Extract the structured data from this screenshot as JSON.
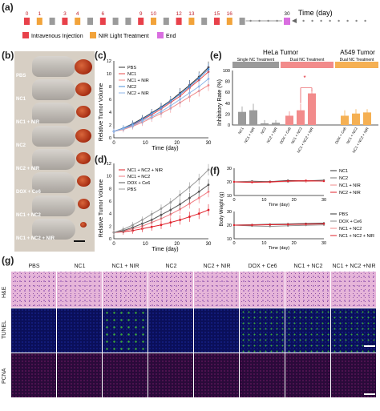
{
  "panel_labels": {
    "a": "(a)",
    "b": "(b)",
    "c": "(c)",
    "d": "(d)",
    "e": "(e)",
    "f": "(f)",
    "g": "(g)"
  },
  "timeline": {
    "axis_label": "Time (day)",
    "ticks": [
      "0",
      "1",
      "3",
      "4",
      "6",
      "9",
      "10",
      "12",
      "13",
      "15",
      "16",
      "30"
    ],
    "legend": {
      "injection": "Intravenous Injection",
      "nir": "NIR Light Treatment",
      "end": "End"
    },
    "colors": {
      "injection": "#e8414a",
      "nir": "#f2a33a",
      "end": "#d96ee0",
      "gray": "#9b9b9b"
    }
  },
  "mice_labels": [
    "PBS",
    "NC1",
    "NC1 + NIR",
    "NC2",
    "NC2 + NIR",
    "DOX + Ce6",
    "NC1 + NC2",
    "NC1 + NC2 + NIR"
  ],
  "panel_c": {
    "ylabel": "Relative Tumor Volume",
    "xlabel": "Time (day)",
    "legend": [
      "PBS",
      "NC1",
      "NC1 + NIR",
      "NC2",
      "NC2 + NIR"
    ]
  },
  "panel_d": {
    "ylabel": "Relative Tumor Volume",
    "xlabel": "Time (day)",
    "legend": [
      "NC1 + NC2 + NIR",
      "NC1 + NC2",
      "DOX + Ce6",
      "PBS"
    ]
  },
  "panel_e": {
    "ylabel": "Inhibitory Rate (%)",
    "group_hela": "HeLa Tumor",
    "group_a549": "A549 Tumor",
    "sub_single": "Single NC Treatment",
    "sub_dual": "Dual NC Treatment",
    "sub_dual2": "Dual NC Treatment",
    "xticks": [
      "NC1",
      "NC1 + NIR",
      "NC2",
      "NC2 + NIR",
      "DOX + Ce6",
      "NC1 + NC2",
      "NC1 + NC2 + NIR",
      "DOX + Ce6",
      "NC1 + NC2",
      "NC1 + NC2 + NIR"
    ],
    "sig": "*"
  },
  "panel_f": {
    "ylabel": "Body Weight (g)",
    "xlabel": "Time (day)",
    "legend_top": [
      "NC1",
      "NC2",
      "NC1 + NIR",
      "NC2 + NIR"
    ],
    "legend_bot": [
      "PBS",
      "DOX + Ce6",
      "NC1 + NC2",
      "NC1 + NC2 + NIR"
    ]
  },
  "panel_g": {
    "columns": [
      "PBS",
      "NC1",
      "NC1 + NIR",
      "NC2",
      "NC2 + NIR",
      "DOX + Ce6",
      "NC1 + NC2",
      "NC1 + NC2 +NIR"
    ],
    "rows": [
      "H&E",
      "TUNEL",
      "PCNA"
    ]
  },
  "chart_data": [
    {
      "type": "line",
      "title": "",
      "xlabel": "Time (day)",
      "ylabel": "Relative Tumor Volume",
      "x": [
        0,
        3,
        6,
        9,
        12,
        15,
        18,
        21,
        24,
        27,
        30
      ],
      "ylim": [
        0,
        12
      ],
      "xlim": [
        0,
        30
      ],
      "series": [
        {
          "name": "PBS",
          "color": "#333333",
          "values": [
            1,
            1.5,
            2.2,
            3.0,
            3.9,
            4.8,
            5.8,
            7.0,
            8.2,
            9.5,
            11.0
          ]
        },
        {
          "name": "NC1",
          "color": "#e84a4a",
          "values": [
            1,
            1.4,
            2.0,
            2.8,
            3.6,
            4.5,
            5.5,
            6.5,
            7.8,
            9.0,
            10.3
          ]
        },
        {
          "name": "NC1 + NIR",
          "color": "#f08a8a",
          "values": [
            1,
            1.3,
            1.8,
            2.4,
            3.1,
            3.8,
            4.6,
            5.5,
            6.4,
            7.3,
            8.2
          ]
        },
        {
          "name": "NC2",
          "color": "#4a8fd8",
          "values": [
            1,
            1.5,
            2.1,
            2.9,
            3.8,
            4.7,
            5.7,
            6.8,
            8.0,
            9.3,
            10.7
          ]
        },
        {
          "name": "NC2 + NIR",
          "color": "#8fb6e8",
          "values": [
            1,
            1.4,
            1.9,
            2.6,
            3.3,
            4.1,
            5.0,
            6.0,
            7.0,
            8.0,
            9.2
          ]
        }
      ]
    },
    {
      "type": "line",
      "title": "",
      "xlabel": "Time (day)",
      "ylabel": "Relative Tumor Volume",
      "x": [
        0,
        3,
        6,
        9,
        12,
        15,
        18,
        21,
        24,
        27,
        30
      ],
      "ylim": [
        0,
        12
      ],
      "xlim": [
        0,
        30
      ],
      "series": [
        {
          "name": "NC1 + NC2 + NIR",
          "color": "#e0202a",
          "values": [
            1,
            1.1,
            1.3,
            1.6,
            1.9,
            2.2,
            2.6,
            3.0,
            3.5,
            4.0,
            4.6
          ]
        },
        {
          "name": "NC1 + NC2",
          "color": "#f07a80",
          "values": [
            1,
            1.2,
            1.6,
            2.0,
            2.6,
            3.2,
            3.9,
            4.7,
            5.6,
            6.5,
            7.5
          ]
        },
        {
          "name": "DOX + Ce6",
          "color": "#555555",
          "values": [
            1,
            1.3,
            1.8,
            2.4,
            3.0,
            3.8,
            4.6,
            5.5,
            6.5,
            7.5,
            8.6
          ]
        },
        {
          "name": "PBS",
          "color": "#999999",
          "values": [
            1,
            1.5,
            2.2,
            3.0,
            3.9,
            4.8,
            5.8,
            7.0,
            8.2,
            9.5,
            11.0
          ]
        }
      ]
    },
    {
      "type": "bar",
      "title": "",
      "ylabel": "Inhibitory Rate (%)",
      "ylim": [
        0,
        100
      ],
      "categories": [
        "NC1",
        "NC1 + NIR",
        "NC2",
        "NC2 + NIR",
        "DOX + Ce6",
        "NC1 + NC2",
        "NC1 + NC2 + NIR",
        "DOX + Ce6",
        "NC1 + NC2",
        "NC1 + NC2 + NIR"
      ],
      "values": [
        24,
        27,
        3,
        4,
        17,
        27,
        58,
        17,
        21,
        23
      ],
      "errors": [
        10,
        12,
        6,
        5,
        8,
        12,
        5,
        10,
        8,
        6
      ],
      "colors": [
        "#9a9a9a",
        "#9a9a9a",
        "#9a9a9a",
        "#9a9a9a",
        "#f28b8b",
        "#f28b8b",
        "#f28b8b",
        "#f5b053",
        "#f5b053",
        "#f5b053"
      ]
    },
    {
      "type": "line",
      "title": "",
      "xlabel": "Time (day)",
      "ylabel": "Body Weight (g)",
      "x": [
        0,
        6,
        12,
        18,
        24,
        30
      ],
      "ylim": [
        10,
        30
      ],
      "series": [
        {
          "name": "NC1",
          "color": "#333333",
          "values": [
            20,
            20.5,
            20.2,
            21,
            20.8,
            21.2
          ]
        },
        {
          "name": "NC2",
          "color": "#777777",
          "values": [
            20,
            19.8,
            20.3,
            20.1,
            20.6,
            20.9
          ]
        },
        {
          "name": "NC1 + NIR",
          "color": "#f08a8a",
          "values": [
            20,
            20.1,
            19.7,
            20.4,
            20.2,
            20.7
          ]
        },
        {
          "name": "NC2 + NIR",
          "color": "#e0202a",
          "values": [
            20,
            19.6,
            20,
            20.6,
            21,
            20.5
          ]
        }
      ]
    },
    {
      "type": "line",
      "title": "",
      "xlabel": "Time (day)",
      "ylabel": "Body Weight (g)",
      "x": [
        0,
        6,
        12,
        18,
        24,
        30
      ],
      "ylim": [
        10,
        30
      ],
      "series": [
        {
          "name": "PBS",
          "color": "#333333",
          "values": [
            20,
            20.3,
            20.6,
            20.9,
            21.1,
            21.4
          ]
        },
        {
          "name": "DOX + Ce6",
          "color": "#888888",
          "values": [
            20,
            19.4,
            19.1,
            19.5,
            19.9,
            20.2
          ]
        },
        {
          "name": "NC1 + NC2",
          "color": "#f08a8a",
          "values": [
            20,
            20.2,
            20.4,
            20.6,
            20.5,
            20.9
          ]
        },
        {
          "name": "NC1 + NC2 + NIR",
          "color": "#e0202a",
          "values": [
            20,
            20,
            20.3,
            20.4,
            20.8,
            21
          ]
        }
      ]
    }
  ]
}
